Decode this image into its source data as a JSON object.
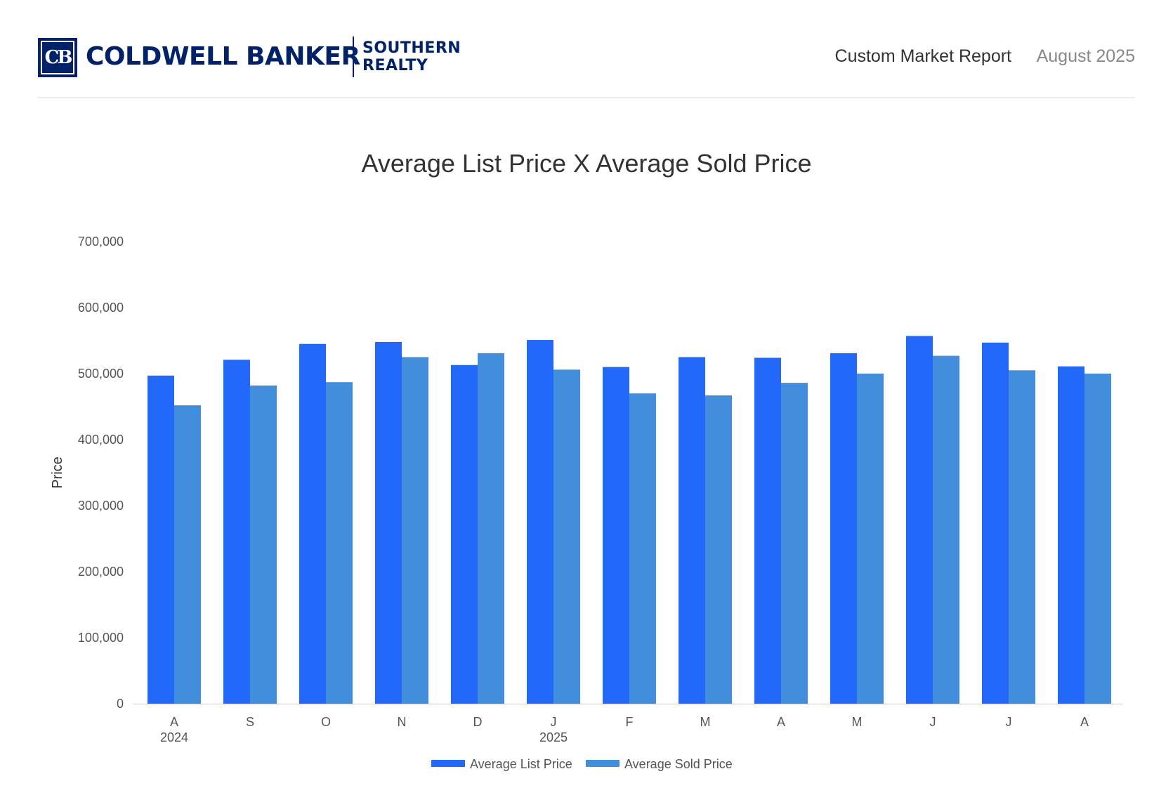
{
  "header": {
    "logo_monogram": "CB",
    "brand_name": "COLDWELL BANKER",
    "brand_sub_line1": "SOUTHERN",
    "brand_sub_line2": "REALTY",
    "report_title": "Custom Market Report",
    "report_date": "August 2025"
  },
  "colors": {
    "brand_navy": "#012169",
    "list_price": "#2369f9",
    "sold_price": "#438ddd"
  },
  "chart_data": {
    "type": "bar",
    "title": "Average List Price X Average Sold Price",
    "xlabel": "",
    "ylabel": "Price",
    "ylim": [
      0,
      700000
    ],
    "yticks": [
      "0",
      "100,000",
      "200,000",
      "300,000",
      "400,000",
      "500,000",
      "600,000",
      "700,000"
    ],
    "categories": [
      "A",
      "S",
      "O",
      "N",
      "D",
      "J",
      "F",
      "M",
      "A",
      "M",
      "J",
      "J",
      "A"
    ],
    "year_labels": [
      {
        "index": 0,
        "label": "2024"
      },
      {
        "index": 5,
        "label": "2025"
      }
    ],
    "series": [
      {
        "name": "Average List Price",
        "color": "#2369f9",
        "values": [
          497000,
          521000,
          545000,
          548000,
          513000,
          551000,
          510000,
          525000,
          524000,
          531000,
          557000,
          547000,
          511000
        ]
      },
      {
        "name": "Average Sold Price",
        "color": "#438ddd",
        "values": [
          452000,
          482000,
          487000,
          525000,
          531000,
          506000,
          470000,
          467000,
          486000,
          500000,
          527000,
          505000,
          500000
        ]
      }
    ],
    "grid": false,
    "legend_position": "bottom"
  }
}
